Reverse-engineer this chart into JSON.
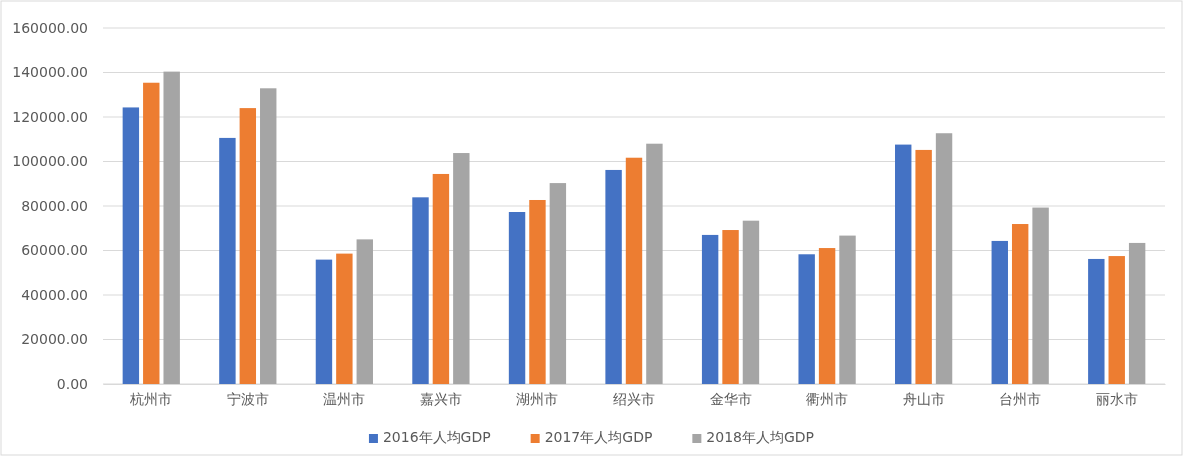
{
  "chart_data": {
    "type": "bar",
    "categories": [
      "杭州市",
      "宁波市",
      "温州市",
      "嘉兴市",
      "湖州市",
      "绍兴市",
      "金华市",
      "衢州市",
      "舟山市",
      "台州市",
      "丽水市"
    ],
    "series": [
      {
        "name": "2016年人均GDP",
        "color": "#4472c4",
        "values": [
          124300,
          110600,
          55900,
          83900,
          77300,
          96200,
          67000,
          58300,
          107600,
          64300,
          56200
        ]
      },
      {
        "name": "2017年人均GDP",
        "color": "#ed7d31",
        "values": [
          135400,
          124000,
          58600,
          94400,
          82700,
          101700,
          69200,
          61100,
          105200,
          71900,
          57500
        ]
      },
      {
        "name": "2018年人均GDP",
        "color": "#a5a5a5",
        "values": [
          140400,
          132900,
          65000,
          103800,
          90300,
          108000,
          73400,
          66700,
          112700,
          79300,
          63400
        ]
      }
    ],
    "ylim": [
      0,
      160000
    ],
    "yticks": [
      {
        "value": 0,
        "label": "0.00"
      },
      {
        "value": 20000,
        "label": "20000.00"
      },
      {
        "value": 40000,
        "label": "40000.00"
      },
      {
        "value": 60000,
        "label": "60000.00"
      },
      {
        "value": 80000,
        "label": "80000.00"
      },
      {
        "value": 100000,
        "label": "100000.00"
      },
      {
        "value": 120000,
        "label": "120000.00"
      },
      {
        "value": 140000,
        "label": "140000.00"
      },
      {
        "value": 160000,
        "label": "160000.00"
      }
    ],
    "grid": "y",
    "legend": "bottom"
  }
}
